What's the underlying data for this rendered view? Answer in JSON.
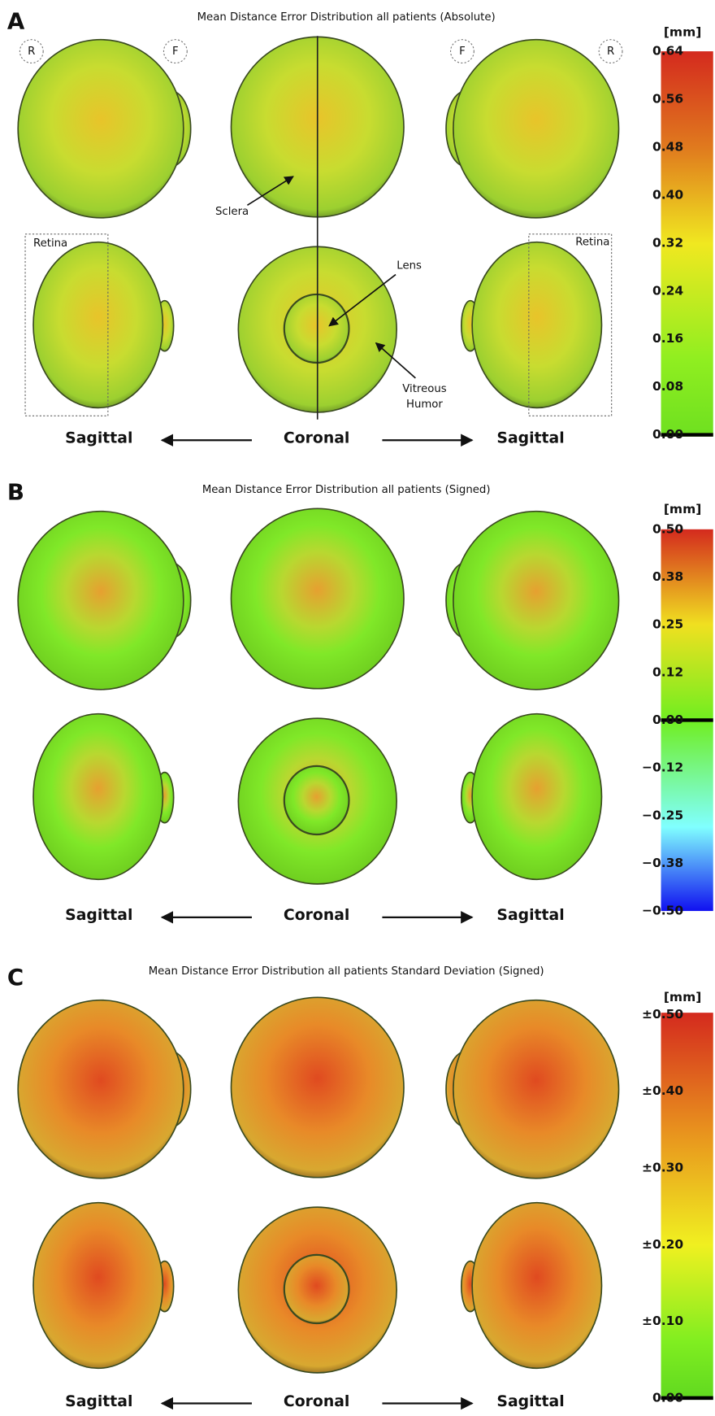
{
  "panels": [
    {
      "letter": "A",
      "title": "Mean Distance Error Distribution all patients (Absolute)",
      "unit": "[mm]",
      "scale_labels": [
        "0.64",
        "0.56",
        "0.48",
        "0.40",
        "0.32",
        "0.24",
        "0.16",
        "0.08",
        "0.00"
      ],
      "views": [
        "Sagittal",
        "Coronal",
        "Sagittal"
      ],
      "annotations": {
        "orientation": [
          "R",
          "F",
          "F",
          "R"
        ],
        "sclera": "Sclera",
        "lens": "Lens",
        "vitreous_humor": [
          "Vitreous",
          "Humor"
        ],
        "retina": [
          "Retina",
          "Retina"
        ]
      }
    },
    {
      "letter": "B",
      "title": "Mean Distance Error Distribution all patients (Signed)",
      "unit": "[mm]",
      "scale_labels": [
        "0.50",
        "0.38",
        "0.25",
        "0.12",
        "0.00",
        "−0.12",
        "−0.25",
        "−0.38",
        "−0.50"
      ],
      "views": [
        "Sagittal",
        "Coronal",
        "Sagittal"
      ]
    },
    {
      "letter": "C",
      "title": "Mean Distance Error Distribution all patients Standard Deviation (Signed)",
      "unit": "[mm]",
      "scale_labels": [
        "±0.50",
        "±0.40",
        "±0.30",
        "±0.20",
        "±0.10",
        "0.00"
      ],
      "views": [
        "Sagittal",
        "Coronal",
        "Sagittal"
      ]
    }
  ]
}
